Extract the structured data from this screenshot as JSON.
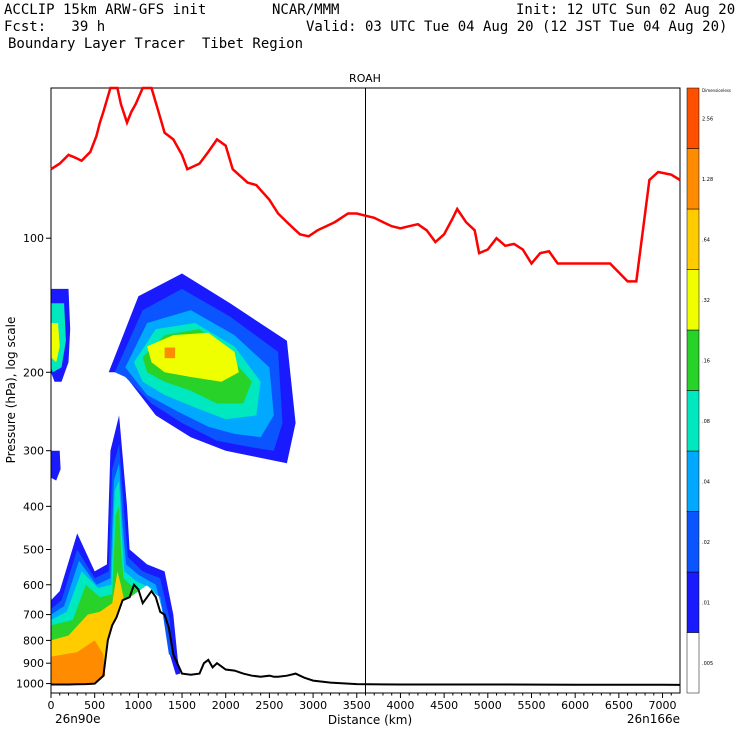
{
  "header": {
    "model": "ACCLIP 15km ARW-GFS init",
    "center": "NCAR/MMM",
    "init": "Init: 12 UTC Sun 02 Aug 20",
    "fcst": "Fcst:   39 h",
    "valid": "Valid: 03 UTC Tue 04 Aug 20 (12 JST Tue 04 Aug 20)",
    "product": "Boundary Layer Tracer  Tibet Region"
  },
  "colors": {
    "tropopause_line": "#ff0000",
    "surface_line": "#000000",
    "levels": [
      "#ffffff",
      "#1a1aff",
      "#0a55ff",
      "#00a8ff",
      "#00e8c0",
      "#28d228",
      "#f0ff00",
      "#ffcc00",
      "#ff8c00",
      "#ff5000"
    ]
  },
  "chart_data": {
    "type": "heatmap",
    "title": "ROAH",
    "xlabel": "Distance (km)",
    "ylabel": "Pressure (hPa), log scale",
    "x_ticks": [
      0,
      500,
      1000,
      1500,
      2000,
      2500,
      3000,
      3500,
      4000,
      4500,
      5000,
      5500,
      6000,
      6500,
      7000
    ],
    "xlim": [
      0,
      7200
    ],
    "ylim": [
      1050,
      46
    ],
    "y_scale": "log",
    "y_ticks": [
      100,
      200,
      300,
      400,
      500,
      600,
      700,
      800,
      900,
      1000
    ],
    "x_start_label": "26n90e",
    "x_end_label": "26n166e",
    "vertical_marker_km": 3600,
    "colorbar": {
      "unit_label": "Dimensionless",
      "levels": [
        ".005",
        ".01",
        ".02",
        ".04",
        ".08",
        ".16",
        ".32",
        ".64",
        "1.28",
        "2.56"
      ]
    },
    "series": [
      {
        "x": [
          0,
          100,
          200,
          280,
          350,
          450,
          520,
          560,
          600,
          680,
          760,
          800,
          870,
          920,
          970,
          1050,
          1150,
          1230,
          1300,
          1400,
          1500,
          1560,
          1700,
          1800,
          1900,
          2000,
          2080,
          2150,
          2250,
          2350,
          2400,
          2500,
          2600,
          2700,
          2800,
          2850,
          2950,
          3050,
          3150,
          3250,
          3400,
          3500,
          3600,
          3700,
          3800,
          3900,
          4000,
          4100,
          4200,
          4300,
          4400,
          4500,
          4600,
          4650,
          4750,
          4850,
          4900,
          5000,
          5100,
          5200,
          5300,
          5400,
          5500,
          5600,
          5700,
          5800,
          5900,
          6000,
          6200,
          6400,
          6600,
          6700,
          6850,
          6950,
          7100,
          7200
        ],
        "y": [
          70,
          68,
          65,
          66,
          67,
          64,
          59,
          55,
          52,
          46,
          46,
          50,
          55,
          52,
          50,
          46,
          46,
          52,
          58,
          60,
          65,
          70,
          68,
          64,
          60,
          62,
          70,
          72,
          75,
          76,
          78,
          82,
          88,
          92,
          96,
          98,
          99,
          96,
          94,
          92,
          88,
          88,
          89,
          90,
          92,
          94,
          95,
          94,
          93,
          96,
          102,
          98,
          90,
          86,
          92,
          96,
          108,
          106,
          100,
          104,
          103,
          106,
          114,
          108,
          107,
          114,
          114,
          114,
          114,
          114,
          125,
          125,
          74,
          71,
          72,
          74
        ]
      },
      {
        "x": [
          0,
          100,
          200,
          300,
          400,
          500,
          600,
          650,
          700,
          750,
          820,
          900,
          950,
          1000,
          1050,
          1100,
          1150,
          1200,
          1250,
          1300,
          1350,
          1400,
          1500,
          1600,
          1700,
          1750,
          1800,
          1850,
          1900,
          2000,
          2100,
          2200,
          2300,
          2400,
          2500,
          2550,
          2600,
          2700,
          2800,
          2850,
          2900,
          3000,
          3200,
          3500,
          4000,
          5000,
          6000,
          7000,
          7200
        ],
        "y": [
          1005,
          1005,
          1005,
          1004,
          1003,
          1000,
          960,
          800,
          740,
          710,
          650,
          640,
          600,
          615,
          660,
          640,
          620,
          640,
          690,
          700,
          750,
          860,
          950,
          955,
          950,
          900,
          885,
          920,
          900,
          930,
          935,
          950,
          960,
          965,
          960,
          965,
          965,
          960,
          950,
          960,
          970,
          985,
          995,
          1003,
          1005,
          1005,
          1006,
          1006,
          1007
        ]
      }
    ],
    "annotations": [
      "ROAH"
    ]
  }
}
